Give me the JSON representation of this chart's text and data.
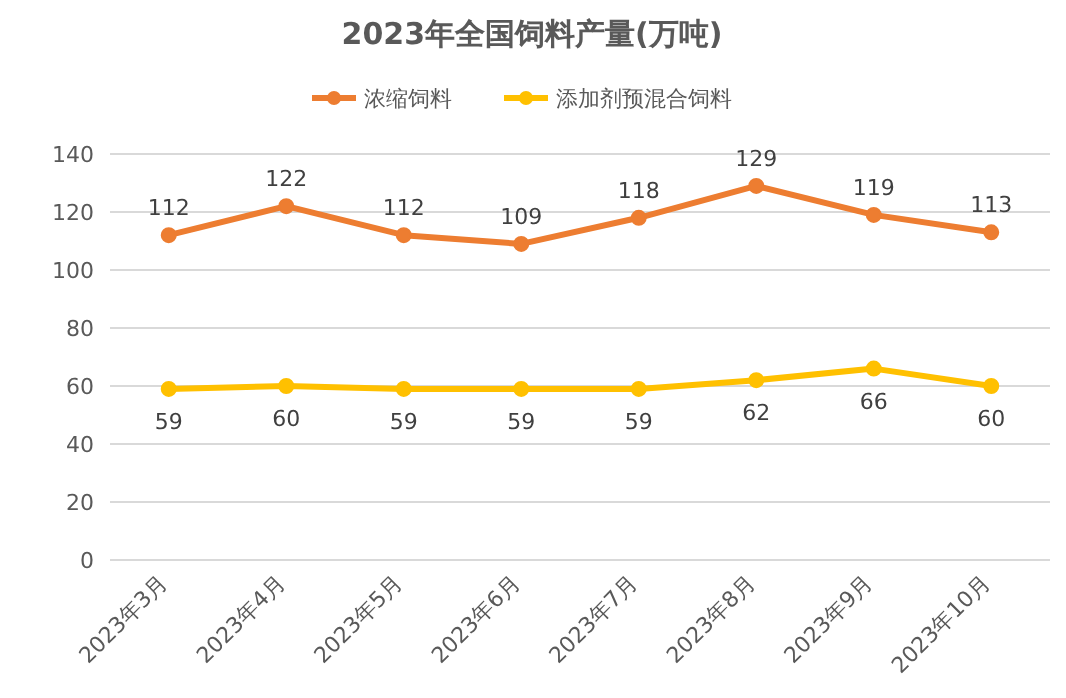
{
  "chart_data": {
    "type": "line",
    "title": "2023年全国饲料产量(万吨)",
    "categories": [
      "2023年3月",
      "2023年4月",
      "2023年5月",
      "2023年6月",
      "2023年7月",
      "2023年8月",
      "2023年9月",
      "2023年10月"
    ],
    "series": [
      {
        "name": "浓缩饲料",
        "color": "#ed7d31",
        "values": [
          112,
          122,
          112,
          109,
          118,
          129,
          119,
          113
        ]
      },
      {
        "name": "添加剂预混合饲料",
        "color": "#ffc000",
        "values": [
          59,
          60,
          59,
          59,
          59,
          62,
          66,
          60
        ]
      }
    ],
    "ylim": [
      0,
      140
    ],
    "yticks": [
      0,
      20,
      40,
      60,
      80,
      100,
      120,
      140
    ],
    "grid": "y",
    "legend": "top",
    "marker": "circle",
    "line_style": "solid",
    "data_labels": true
  }
}
